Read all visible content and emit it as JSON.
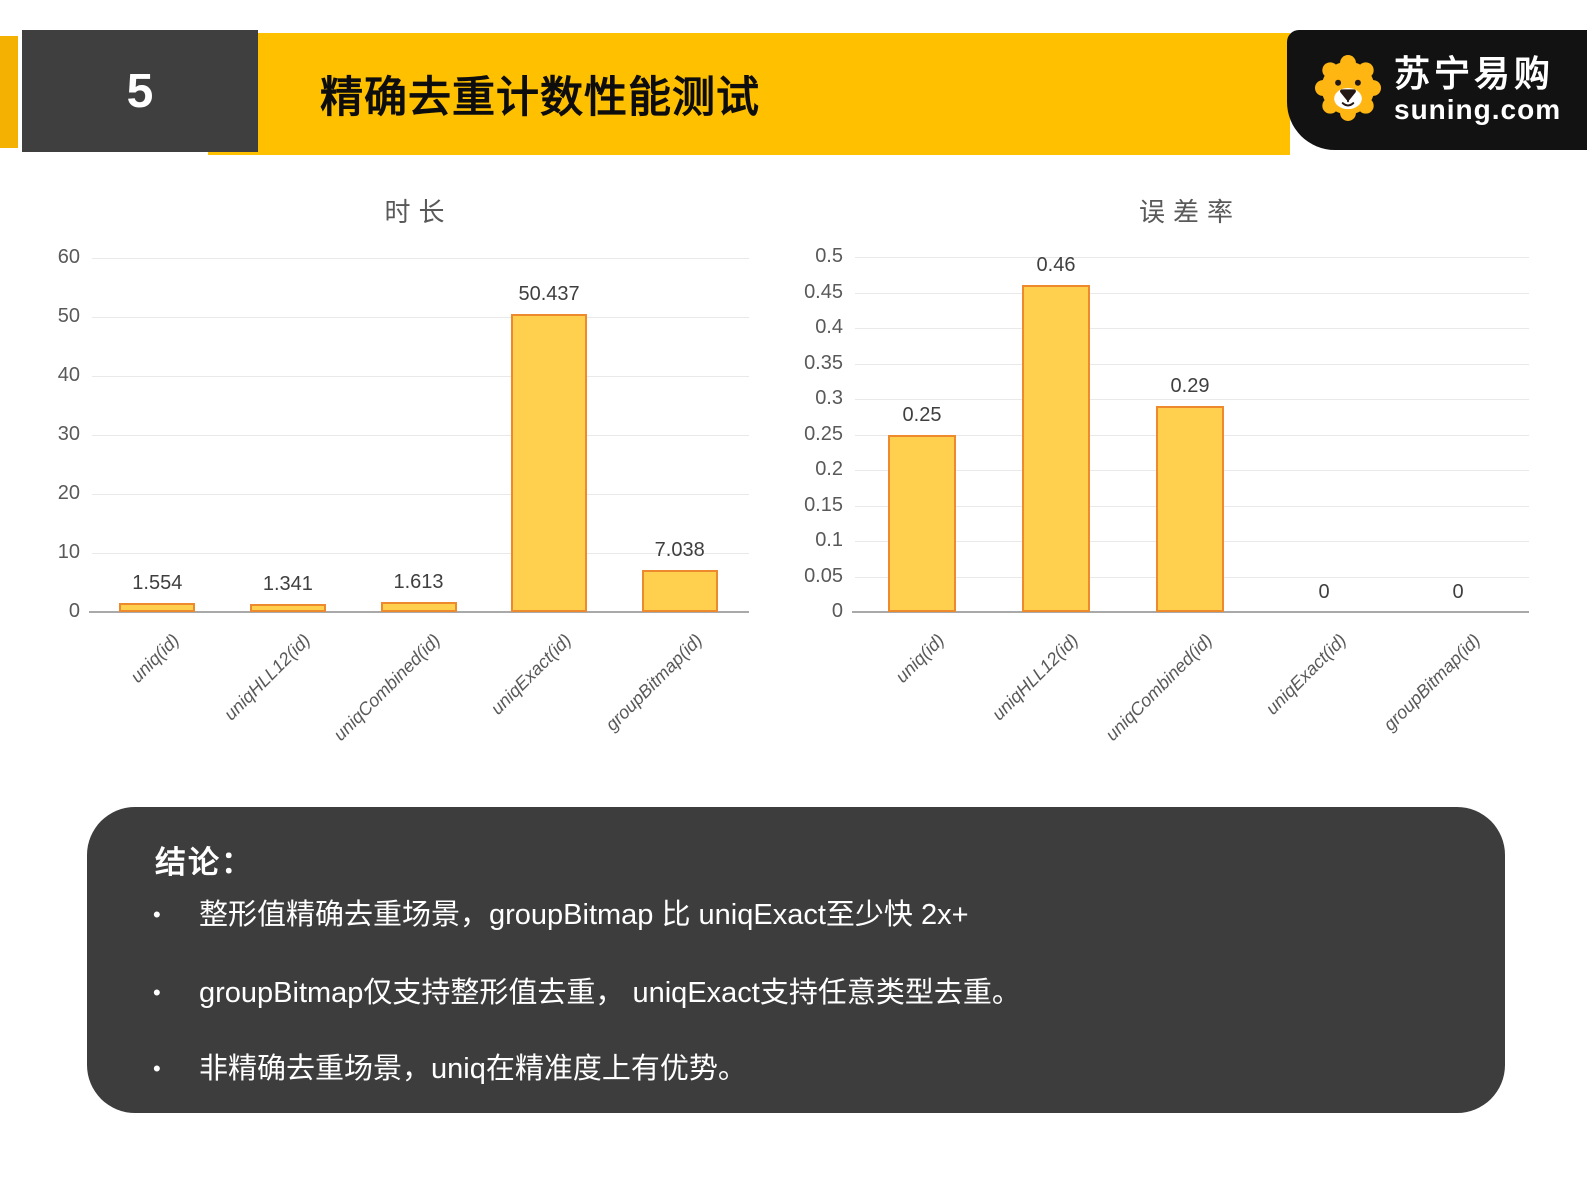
{
  "slide": {
    "page_number": "5",
    "title": "精确去重计数性能测试",
    "logo": {
      "brand_name_cn": "苏宁易购",
      "brand_domain": "suning.com"
    }
  },
  "chart_data": [
    {
      "type": "bar",
      "title": "时长",
      "categories": [
        "uniq(id)",
        "uniqHLL12(id)",
        "uniqCombined(id)",
        "uniqExact(id)",
        "groupBitmap(id)"
      ],
      "values": [
        1.554,
        1.341,
        1.613,
        50.437,
        7.038
      ],
      "value_labels": [
        "1.554",
        "1.341",
        "1.613",
        "50.437",
        "7.038"
      ],
      "xlabel": "",
      "ylabel": "",
      "ylim": [
        0,
        60
      ],
      "yticks": [
        0,
        10,
        20,
        30,
        40,
        50,
        60
      ],
      "ytick_labels": [
        "0",
        "10",
        "20",
        "30",
        "40",
        "50",
        "60"
      ],
      "grid": true,
      "legend": false
    },
    {
      "type": "bar",
      "title": "误差率",
      "categories": [
        "uniq(id)",
        "uniqHLL12(id)",
        "uniqCombined(id)",
        "uniqExact(id)",
        "groupBitmap(id)"
      ],
      "values": [
        0.25,
        0.46,
        0.29,
        0,
        0
      ],
      "value_labels": [
        "0.25",
        "0.46",
        "0.29",
        "0",
        "0"
      ],
      "xlabel": "",
      "ylabel": "",
      "ylim": [
        0,
        0.5
      ],
      "yticks": [
        0,
        0.05,
        0.1,
        0.15,
        0.2,
        0.25,
        0.3,
        0.35,
        0.4,
        0.45,
        0.5
      ],
      "ytick_labels": [
        "0",
        "0.05",
        "0.1",
        "0.15",
        "0.2",
        "0.25",
        "0.3",
        "0.35",
        "0.4",
        "0.45",
        "0.5"
      ],
      "grid": true,
      "legend": false
    }
  ],
  "conclusion": {
    "heading": "结论：",
    "bullet_glyph": "•",
    "bullets": [
      "整形值精确去重场景，groupBitmap 比 uniqExact至少快 2x+",
      "groupBitmap仅支持整形值去重， uniqExact支持任意类型去重。",
      "非精确去重场景，uniq在精准度上有优势。"
    ]
  },
  "colors": {
    "header_yellow": "#FFC000",
    "left_strip_yellow": "#F5B101",
    "page_box_dark": "#3F3F3F",
    "panel_dark": "#3D3D3D",
    "logo_background": "#121212",
    "logo_lion_yellow": "#FFB612",
    "bar_fill": "#FFD04E",
    "bar_border": "#ED8A2E",
    "gridline": "#E9E9E9",
    "axis_line": "#A9A9A9",
    "tick_text": "#595959",
    "value_label_text": "#3F3F3F",
    "bullet_text": "#FFFFFF"
  }
}
